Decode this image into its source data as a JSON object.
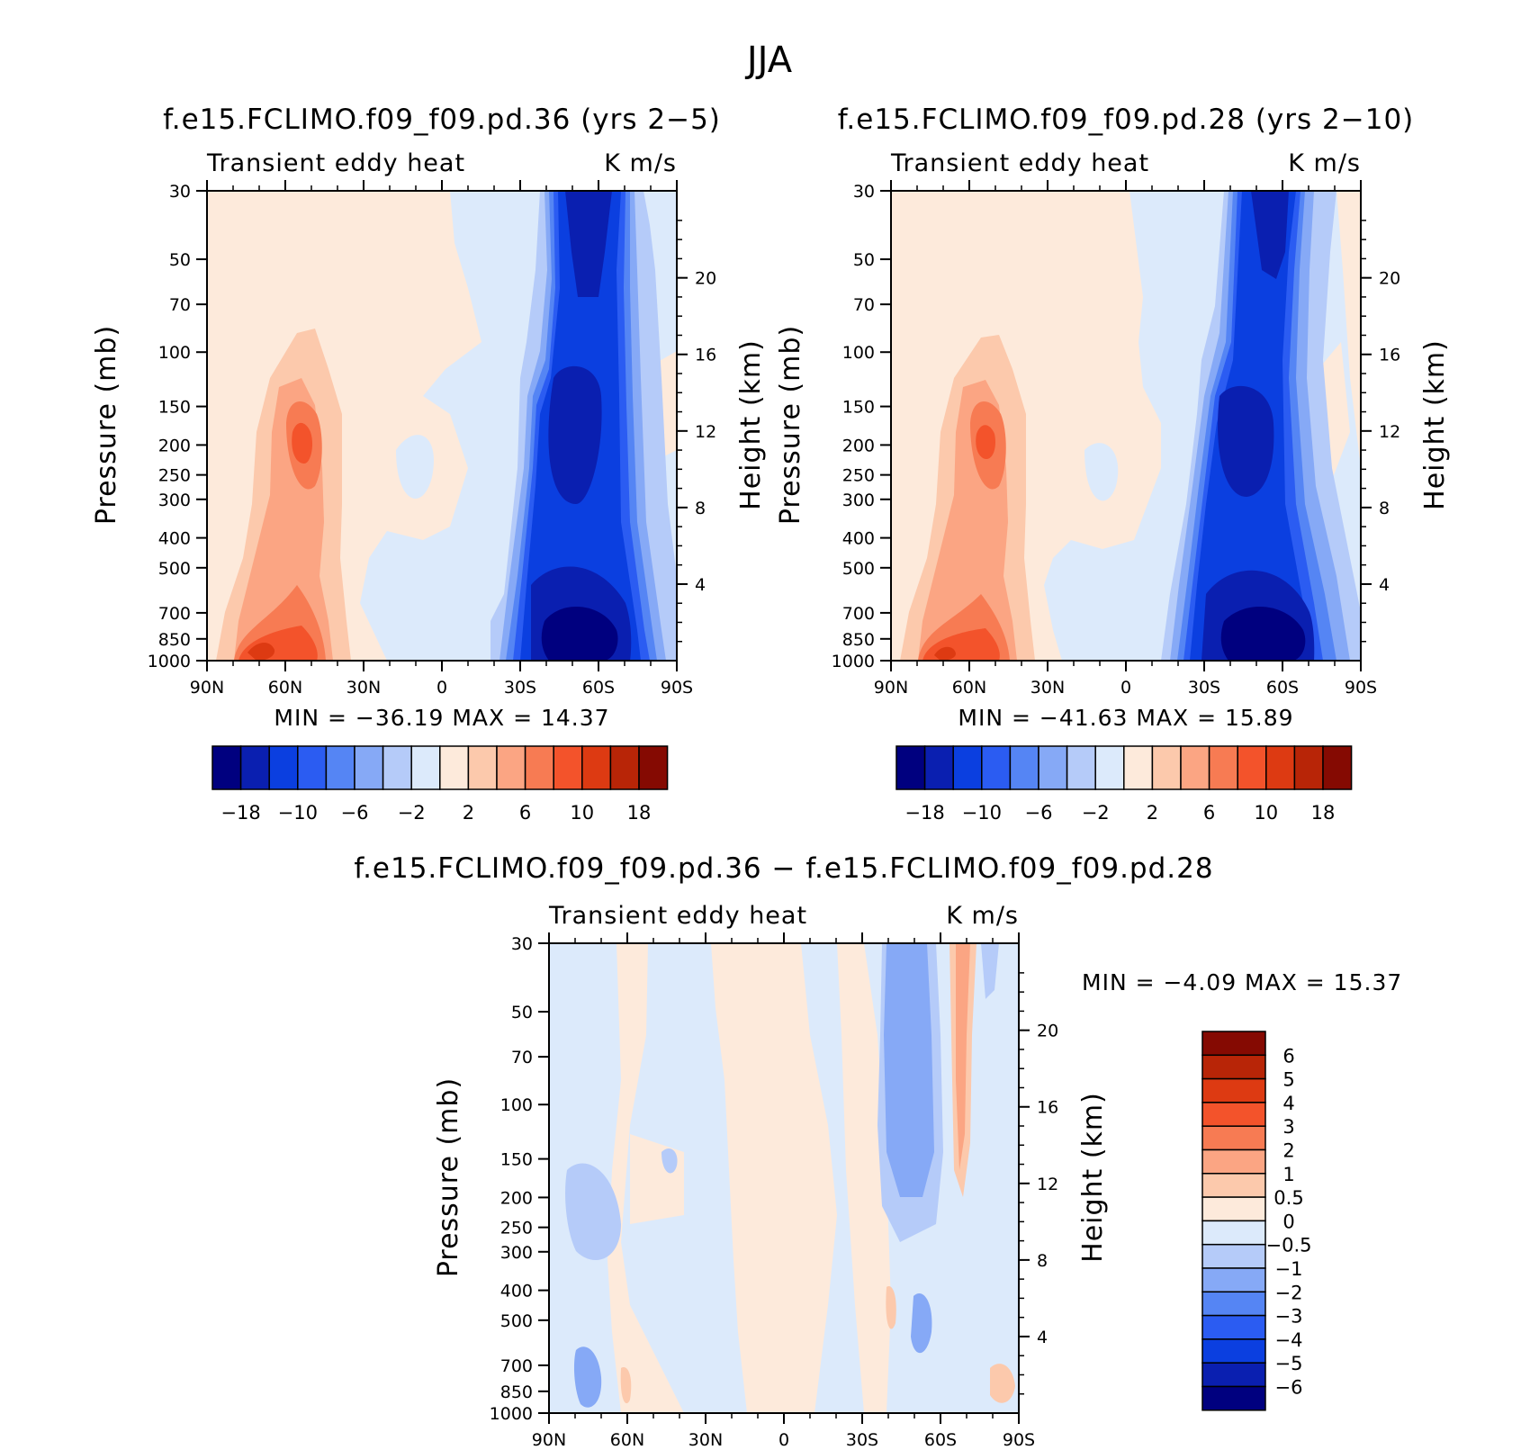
{
  "title": "JJA",
  "colors": {
    "neg18": "#00007f",
    "neg14": "#0a1fb0",
    "neg10": "#0b3fe0",
    "neg8": "#2b5cf2",
    "neg6": "#5585f4",
    "neg4": "#86a9f6",
    "neg2": "#b5cbf9",
    "neg0": "#dceafb",
    "pos0": "#fdeadb",
    "pos2": "#fcc9ac",
    "pos4": "#fba583",
    "pos6": "#f77b53",
    "pos8": "#f3532b",
    "pos10": "#dd3a12",
    "pos14": "#b82507",
    "pos18": "#850a02"
  },
  "panels": [
    {
      "title": "f.e15.FCLIMO.f09_f09.pd.36 (yrs 2−5)",
      "left_label": "Transient eddy heat",
      "right_label": "K m/s",
      "stats": "MIN = −36.19   MAX =   14.37"
    },
    {
      "title": "f.e15.FCLIMO.f09_f09.pd.28 (yrs 2−10)",
      "left_label": "Transient eddy heat",
      "right_label": "K m/s",
      "stats": "MIN = −41.63   MAX =   15.89"
    },
    {
      "title": "f.e15.FCLIMO.f09_f09.pd.36 − f.e15.FCLIMO.f09_f09.pd.28",
      "left_label": "Transient eddy heat",
      "right_label": "K m/s",
      "stats": "MIN =   −4.09   MAX =   15.37"
    }
  ],
  "colorbar_top": {
    "labels": [
      "−18",
      "−10",
      "−6",
      "−2",
      "2",
      "6",
      "10",
      "18"
    ]
  },
  "colorbar_diff": {
    "labels": [
      "6",
      "5",
      "4",
      "3",
      "2",
      "1",
      "0.5",
      "0",
      "−0.5",
      "−1",
      "−2",
      "−3",
      "−4",
      "−5",
      "−6"
    ]
  },
  "chart_data": [
    {
      "type": "heatmap",
      "title": "f.e15.FCLIMO.f09_f09.pd.36 (yrs 2−5)",
      "ylabel": "Pressure (mb)",
      "ylabel_right": "Height (km)",
      "x_ticks": [
        "90N",
        "60N",
        "30N",
        "0",
        "30S",
        "60S",
        "90S"
      ],
      "y_ticks": [
        30,
        50,
        70,
        100,
        150,
        200,
        250,
        300,
        400,
        500,
        700,
        850,
        1000
      ],
      "y_ticks_right": [
        20,
        16,
        12,
        8,
        4
      ],
      "ylim": [
        1000,
        30
      ],
      "y_scale": "log",
      "xlim": [
        90,
        -90
      ],
      "units": "K m/s",
      "min": -36.19,
      "max": 14.37,
      "levels": [
        -18,
        -14,
        -10,
        -8,
        -6,
        -4,
        -2,
        0,
        2,
        4,
        6,
        8,
        10,
        14,
        18
      ]
    },
    {
      "type": "heatmap",
      "title": "f.e15.FCLIMO.f09_f09.pd.28 (yrs 2−10)",
      "ylabel": "Pressure (mb)",
      "ylabel_right": "Height (km)",
      "x_ticks": [
        "90N",
        "60N",
        "30N",
        "0",
        "30S",
        "60S",
        "90S"
      ],
      "y_ticks": [
        30,
        50,
        70,
        100,
        150,
        200,
        250,
        300,
        400,
        500,
        700,
        850,
        1000
      ],
      "y_ticks_right": [
        20,
        16,
        12,
        8,
        4
      ],
      "ylim": [
        1000,
        30
      ],
      "y_scale": "log",
      "xlim": [
        90,
        -90
      ],
      "units": "K m/s",
      "min": -41.63,
      "max": 15.89,
      "levels": [
        -18,
        -14,
        -10,
        -8,
        -6,
        -4,
        -2,
        0,
        2,
        4,
        6,
        8,
        10,
        14,
        18
      ]
    },
    {
      "type": "heatmap",
      "title": "f.e15.FCLIMO.f09_f09.pd.36 − f.e15.FCLIMO.f09_f09.pd.28",
      "ylabel": "Pressure (mb)",
      "ylabel_right": "Height (km)",
      "x_ticks": [
        "90N",
        "60N",
        "30N",
        "0",
        "30S",
        "60S",
        "90S"
      ],
      "y_ticks": [
        30,
        50,
        70,
        100,
        150,
        200,
        250,
        300,
        400,
        500,
        700,
        850,
        1000
      ],
      "y_ticks_right": [
        20,
        16,
        12,
        8,
        4
      ],
      "ylim": [
        1000,
        30
      ],
      "y_scale": "log",
      "xlim": [
        90,
        -90
      ],
      "units": "K m/s",
      "min": -4.09,
      "max": 15.37,
      "levels": [
        -6,
        -5,
        -4,
        -3,
        -2,
        -1,
        -0.5,
        0,
        0.5,
        1,
        2,
        3,
        4,
        5,
        6
      ]
    }
  ]
}
